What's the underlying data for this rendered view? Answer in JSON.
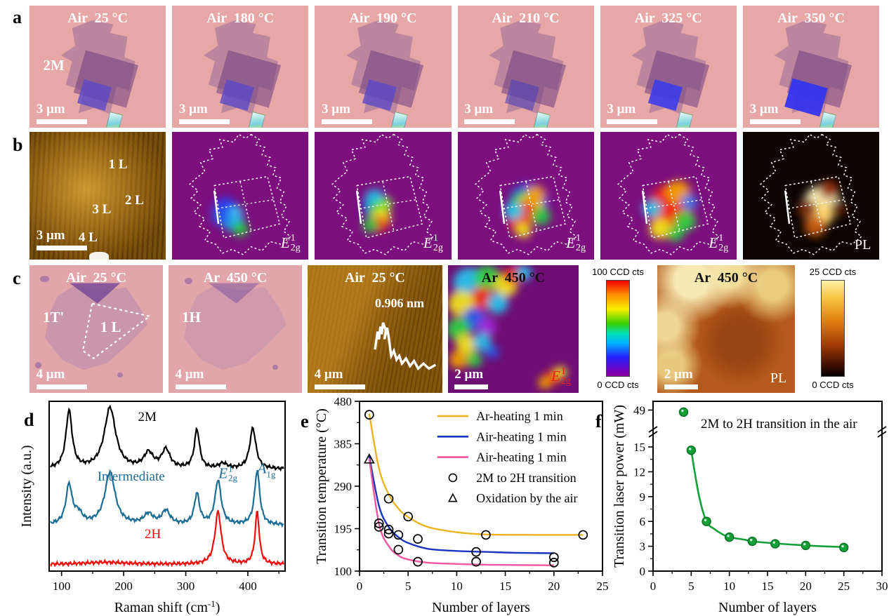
{
  "panels": {
    "a": {
      "letter": "a",
      "tiles": [
        {
          "title": "Air  25 °C",
          "tag": "2M",
          "scalebar": "3 μm"
        },
        {
          "title": "Air  180 °C",
          "scalebar": "3 μm"
        },
        {
          "title": "Air  190 °C",
          "scalebar": "3 μm"
        },
        {
          "title": "Air  210 °C",
          "scalebar": "3 μm"
        },
        {
          "title": "Air  325 °C",
          "scalebar": "3 μm"
        },
        {
          "title": "Air  350 °C",
          "scalebar": "3 μm"
        }
      ]
    },
    "b": {
      "letter": "b",
      "afm": {
        "layer_labels": [
          "1 L",
          "2 L",
          "3 L",
          "4 L"
        ],
        "scalebar": "3 μm"
      },
      "raman_label": {
        "sym": "E",
        "sup": "1",
        "sub": "2g"
      },
      "pl_label": "PL"
    },
    "c": {
      "letter": "c",
      "tiles": [
        {
          "title": "Air  25 °C",
          "tag": "1T'",
          "inner": "1 L",
          "scalebar": "4 μm"
        },
        {
          "title": "Ar  450 °C",
          "tag": "1H",
          "scalebar": "4 μm"
        },
        {
          "title": "Air  25 °C",
          "height_label": "0.906 nm",
          "scalebar": "4 μm"
        },
        {
          "title": "Ar  450 °C",
          "scalebar": "2 μm"
        },
        {
          "title": "Ar  450 °C",
          "map_label": "PL",
          "scalebar": "2 μm"
        }
      ],
      "colorbars": [
        {
          "top": "100 CCD cts",
          "bottom": "0 CCD cts"
        },
        {
          "top": "25 CCD cts",
          "bottom": "0 CCD cts"
        }
      ]
    },
    "d": {
      "letter": "d"
    },
    "e": {
      "letter": "e"
    },
    "f": {
      "letter": "f"
    }
  },
  "chart_data": [
    {
      "id": "d",
      "type": "line",
      "xlabel": "Raman shift (cm⁻¹)",
      "ylabel": "Intensity (a.u.)",
      "xlim": [
        80,
        460
      ],
      "xticks": [
        100,
        200,
        300,
        400
      ],
      "xminor": [
        150,
        250,
        350,
        450
      ],
      "grid": false,
      "series": [
        {
          "name": "2M",
          "color": "#000000",
          "baseline": 0.6,
          "peaks": [
            [
              112,
              0.34,
              6
            ],
            [
              178,
              0.36,
              11
            ],
            [
              240,
              0.09,
              9
            ],
            [
              268,
              0.11,
              8
            ],
            [
              318,
              0.23,
              5
            ],
            [
              360,
              0.03,
              8
            ],
            [
              408,
              0.24,
              6
            ]
          ]
        },
        {
          "name": "Intermediate",
          "color": "#1c6e94",
          "baseline": 0.27,
          "peaks": [
            [
              112,
              0.23,
              6
            ],
            [
              127,
              0.06,
              8
            ],
            [
              178,
              0.31,
              10
            ],
            [
              240,
              0.06,
              9
            ],
            [
              268,
              0.08,
              8
            ],
            [
              318,
              0.18,
              5
            ],
            [
              352,
              0.26,
              6
            ],
            [
              415,
              0.32,
              5
            ]
          ]
        },
        {
          "name": "2H",
          "color": "#f20d0d",
          "baseline": 0.04,
          "peaks": [
            [
              170,
              0.012,
              40
            ],
            [
              352,
              0.31,
              6
            ],
            [
              415,
              0.31,
              4
            ]
          ]
        }
      ],
      "annotations": [
        {
          "text": "2M",
          "x": 238,
          "yfrac": 0.9,
          "color": "#000000"
        },
        {
          "text": "Intermediate",
          "x": 212,
          "yfrac": 0.55,
          "color": "#1c6e94"
        },
        {
          "text": "2H",
          "x": 247,
          "yfrac": 0.21,
          "color": "#f20d0d"
        }
      ],
      "peak_labels": [
        {
          "sym": "E",
          "sup": "1",
          "sub": "2g",
          "x": 368,
          "yfrac": 0.57,
          "color": "#1c6e94"
        },
        {
          "sym": "A",
          "sup": "",
          "sub": "1g",
          "x": 430,
          "yfrac": 0.6,
          "color": "#1c6e94"
        }
      ]
    },
    {
      "id": "e",
      "type": "scatter-line",
      "xlabel": "Number of layers",
      "ylabel": "Transition temperature (°C)",
      "xlim": [
        0,
        25
      ],
      "ylim": [
        100,
        480
      ],
      "xticks": [
        0,
        5,
        10,
        15,
        20,
        25
      ],
      "yticks": [
        100,
        195,
        290,
        385,
        480
      ],
      "legend_position": "top-right",
      "series": [
        {
          "name": "Ar-heating 1 min",
          "color": "#e9b41e",
          "points": [
            [
              1,
              452
            ],
            [
              2,
              330
            ],
            [
              3,
              272
            ],
            [
              4,
              240
            ],
            [
              5,
              221
            ],
            [
              7,
              199
            ],
            [
              10,
              187
            ],
            [
              13,
              182
            ],
            [
              18,
              181
            ],
            [
              23,
              181
            ]
          ]
        },
        {
          "name": "Air-heating 1 min",
          "color": "#1b35c3",
          "points": [
            [
              1,
              358
            ],
            [
              2,
              246
            ],
            [
              3,
              199
            ],
            [
              4,
              176
            ],
            [
              5,
              163
            ],
            [
              7,
              150
            ],
            [
              10,
              145
            ],
            [
              13,
              143
            ],
            [
              16,
              141
            ],
            [
              20,
              140
            ]
          ]
        },
        {
          "name": "Air-heating 1 min",
          "color": "#f4559f",
          "points": [
            [
              1,
              352
            ],
            [
              2,
              206
            ],
            [
              3,
              156
            ],
            [
              4,
              135
            ],
            [
              5,
              126
            ],
            [
              7,
              119
            ],
            [
              10,
              116
            ],
            [
              14,
              114
            ],
            [
              20,
              113
            ]
          ]
        }
      ],
      "scatter": [
        {
          "name": "2M to 2H transition",
          "marker": "circle",
          "points": [
            [
              1,
              450
            ],
            [
              2,
              207
            ],
            [
              2,
              199
            ],
            [
              3,
              262
            ],
            [
              3,
              193
            ],
            [
              3,
              184
            ],
            [
              4,
              181
            ],
            [
              4,
              148
            ],
            [
              5,
              222
            ],
            [
              6,
              172
            ],
            [
              6,
              121
            ],
            [
              12,
              143
            ],
            [
              12,
              121
            ],
            [
              13,
              181
            ],
            [
              20,
              131
            ],
            [
              20,
              119
            ],
            [
              23,
              181
            ]
          ]
        },
        {
          "name": "Oxidation by the air",
          "marker": "triangle",
          "points": [
            [
              1,
              350
            ]
          ]
        }
      ]
    },
    {
      "id": "f",
      "type": "scatter-line-broken-axis",
      "xlabel": "Number of layers",
      "ylabel": "Transition laser power (mW)",
      "xlim": [
        0,
        30
      ],
      "xticks": [
        0,
        5,
        10,
        15,
        20,
        25,
        30
      ],
      "y_lower_range": [
        0,
        16
      ],
      "yticks_lower": [
        0,
        3,
        6,
        9,
        12,
        15
      ],
      "y_upper_range": [
        45,
        52
      ],
      "yticks_upper": [
        49
      ],
      "annotation": "2M to 2H transition in the air",
      "series": [
        {
          "name": "fit",
          "color": "#13a038",
          "points": [
            [
              5,
              14.6
            ],
            [
              6,
              9.2
            ],
            [
              7,
              6.0
            ],
            [
              8,
              5.1
            ],
            [
              9,
              4.5
            ],
            [
              10,
              4.1
            ],
            [
              12,
              3.8
            ],
            [
              13,
              3.6
            ],
            [
              16,
              3.35
            ],
            [
              20,
              3.1
            ],
            [
              25,
              2.9
            ]
          ]
        }
      ],
      "scatter": [
        {
          "name": "2M to 2H transition in the air",
          "marker": "dot",
          "color": "#13a038",
          "points": [
            [
              4,
              48.3
            ],
            [
              5,
              14.6
            ],
            [
              7,
              6.0
            ],
            [
              10,
              4.1
            ],
            [
              13,
              3.6
            ],
            [
              16,
              3.3
            ],
            [
              20,
              3.1
            ],
            [
              25,
              2.85
            ]
          ]
        }
      ]
    }
  ]
}
